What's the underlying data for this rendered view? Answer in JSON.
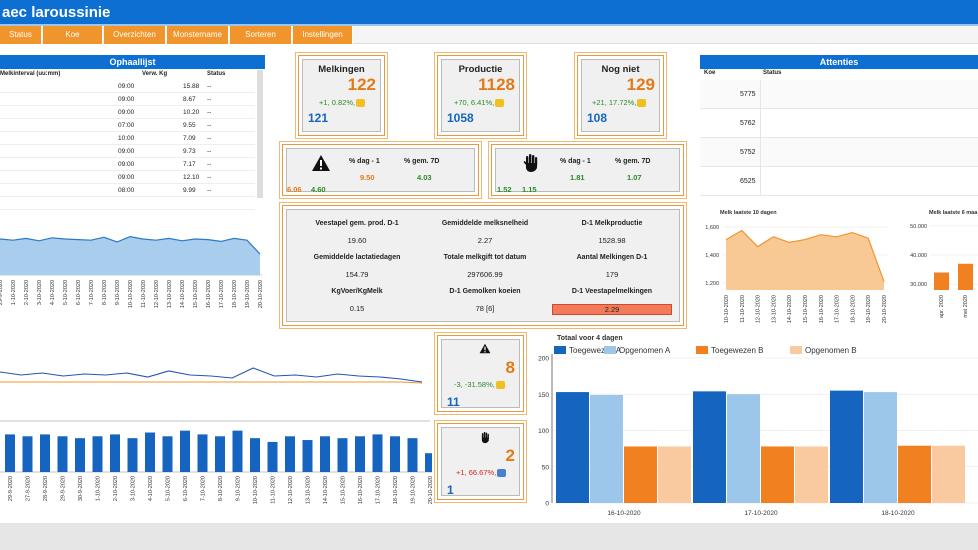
{
  "app": {
    "title": "aec laroussinie"
  },
  "menu": [
    "Status",
    "Koe",
    "Overzichten",
    "Monstername",
    "Sorteren",
    "Instellingen"
  ],
  "ophaallijst": {
    "title": "Ophaallijst",
    "columns": [
      "Melkinterval (uu:mm)",
      "Verw. Kg",
      "Status"
    ],
    "rows": [
      {
        "interval": "09:00",
        "kg": "15.88",
        "status": "--"
      },
      {
        "interval": "09:00",
        "kg": "8.67",
        "status": "--"
      },
      {
        "interval": "09:00",
        "kg": "10.20",
        "status": "--"
      },
      {
        "interval": "07:00",
        "kg": "9.55",
        "status": "--"
      },
      {
        "interval": "10:00",
        "kg": "7.09",
        "status": "--"
      },
      {
        "interval": "09:00",
        "kg": "9.73",
        "status": "--"
      },
      {
        "interval": "09:00",
        "kg": "7.17",
        "status": "--"
      },
      {
        "interval": "09:00",
        "kg": "12.10",
        "status": "--"
      },
      {
        "interval": "08:00",
        "kg": "9.99",
        "status": "--"
      },
      {
        "interval": "",
        "kg": "",
        "status": ""
      }
    ]
  },
  "kpis": {
    "melkingen": {
      "title": "Melkingen",
      "big": "122",
      "delta": "+1, 0.82%,",
      "small": "121"
    },
    "productie": {
      "title": "Productie",
      "big": "1128",
      "delta": "+70, 6.41%,",
      "small": "1058"
    },
    "nogniet": {
      "title": "Nog niet",
      "big": "129",
      "delta": "+21, 17.72%,",
      "small": "108"
    }
  },
  "alerts": {
    "warning": {
      "h1": "% dag - 1",
      "h2": "% gem. 7D",
      "v1": "9.50",
      "v2": "4.03",
      "a": "6.06",
      "b": "4.60"
    },
    "stop": {
      "h1": "% dag - 1",
      "h2": "% gem. 7D",
      "v1": "1.81",
      "v2": "1.07",
      "a": "1.52",
      "b": "1.15"
    }
  },
  "stats": [
    {
      "label": "Veestapel gem. prod. D-1",
      "value": "19.60"
    },
    {
      "label": "Gemiddelde melksnelheid",
      "value": "2.27"
    },
    {
      "label": "D-1 Melkproductie",
      "value": "1528.98"
    },
    {
      "label": "Gemiddelde lactatiedagen",
      "value": "154.79"
    },
    {
      "label": "Totale melkgift tot datum",
      "value": "297606.99"
    },
    {
      "label": "Aantal Melkingen D-1",
      "value": "179"
    },
    {
      "label": "KgVoer/KgMelk",
      "value": "0.15"
    },
    {
      "label": "D-1 Gemolken koeien",
      "value": "78 [6]"
    },
    {
      "label": "D-1 Veestapelmelkingen",
      "value": "2.29"
    }
  ],
  "warn_box": {
    "big": "8",
    "delta": "-3, -31.58%,",
    "small": "11"
  },
  "stop_box": {
    "big": "2",
    "delta": "+1, 66.67%,",
    "small": "1"
  },
  "attenties": {
    "title": "Attenties",
    "columns": [
      "Koe",
      "Status"
    ],
    "rows": [
      "5775",
      "5762",
      "5752",
      "6525"
    ]
  },
  "dates_left": [
    "29-9-2020",
    "27-9-2020",
    "28-9-2020",
    "29-9-2020",
    "30-9-2020",
    "1-10-2020",
    "2-10-2020",
    "3-10-2020",
    "4-10-2020",
    "5-10-2020",
    "6-10-2020",
    "7-10-2020",
    "8-10-2020",
    "9-10-2020",
    "10-10-2020",
    "11-10-2020",
    "12-10-2020",
    "13-10-2020",
    "14-10-2020",
    "15-10-2020",
    "16-10-2020",
    "17-10-2020",
    "18-10-2020",
    "19-10-2020",
    "20-10-2020"
  ],
  "chart_data": [
    {
      "type": "area",
      "title": "",
      "x": [
        "29-9-2020",
        "1-10-2020",
        "2-10-2020",
        "3-10-2020",
        "4-10-2020",
        "5-10-2020",
        "6-10-2020",
        "7-10-2020",
        "8-10-2020",
        "9-10-2020",
        "10-10-2020",
        "11-10-2020",
        "12-10-2020",
        "13-10-2020",
        "14-10-2020",
        "15-10-2020",
        "16-10-2020",
        "17-10-2020",
        "18-10-2020",
        "19-10-2020",
        "20-10-2020"
      ],
      "values": [
        60,
        58,
        61,
        57,
        62,
        60,
        59,
        58,
        63,
        55,
        64,
        60,
        58,
        61,
        57,
        60,
        59,
        56,
        61,
        58,
        35
      ]
    },
    {
      "type": "line",
      "title": "",
      "series": [
        {
          "name": "",
          "color": "#1f56b8",
          "values": [
            48,
            45,
            47,
            44,
            46,
            45,
            47,
            43,
            49,
            45,
            44,
            42,
            52,
            44,
            45,
            43,
            46,
            44,
            43,
            41,
            38
          ]
        },
        {
          "name": "",
          "color": "#f0952c",
          "values": [
            38,
            38,
            38,
            38,
            38,
            38,
            38,
            38,
            38,
            38,
            38,
            38,
            38,
            38,
            38,
            38,
            38,
            38,
            38,
            38,
            37
          ]
        }
      ]
    },
    {
      "type": "bar",
      "title": "",
      "categories": [
        "29-9-2020",
        "27-9-2020",
        "28-9-2020",
        "29-9-2020",
        "30-9-2020",
        "1-10-2020",
        "2-10-2020",
        "3-10-2020",
        "4-10-2020",
        "5-10-2020",
        "6-10-2020",
        "7-10-2020",
        "8-10-2020",
        "9-10-2020",
        "10-10-2020",
        "11-10-2020",
        "12-10-2020",
        "13-10-2020",
        "14-10-2020",
        "15-10-2020",
        "16-10-2020",
        "17-10-2020",
        "18-10-2020",
        "19-10-2020",
        "20-10-2020"
      ],
      "values": [
        20,
        19,
        20,
        19,
        18,
        19,
        20,
        18,
        21,
        19,
        22,
        20,
        19,
        22,
        18,
        16,
        19,
        17,
        19,
        18,
        19,
        20,
        19,
        18,
        10
      ],
      "ylim": [
        0,
        25
      ]
    },
    {
      "type": "area",
      "title": "Melk laatste 10 dagen",
      "x": [
        "10-10-2020",
        "11-10-2020",
        "12-10-2020",
        "13-10-2020",
        "14-10-2020",
        "15-10-2020",
        "16-10-2020",
        "17-10-2020",
        "18-10-2020",
        "19-10-2020",
        "20-10-2020"
      ],
      "values": [
        1510,
        1575,
        1460,
        1530,
        1490,
        1510,
        1545,
        1530,
        1560,
        1520,
        1210
      ],
      "yticks": [
        "1,600",
        "1,400",
        "1,200"
      ],
      "ylim": [
        1150,
        1650
      ]
    },
    {
      "type": "bar",
      "title": "Melk laatste 6 maa",
      "categories": [
        "apr. 2020",
        "mei 2020"
      ],
      "values": [
        34000,
        37000
      ],
      "yticks": [
        "50.000",
        "40.000",
        "30.000"
      ],
      "ylim": [
        28000,
        52000
      ]
    },
    {
      "type": "bar",
      "title": "Totaal voor 4 dagen",
      "categories": [
        "16-10-2020",
        "17-10-2020",
        "18-10-2020"
      ],
      "series": [
        {
          "name": "Toegewezen A",
          "color": "#1565c0",
          "values": [
            153,
            154,
            155
          ]
        },
        {
          "name": "Opgenomen A",
          "color": "#9cc7ea",
          "values": [
            149,
            150,
            153
          ]
        },
        {
          "name": "Toegewezen B",
          "color": "#f08020",
          "values": [
            78,
            78,
            79
          ]
        },
        {
          "name": "Opgenomen B",
          "color": "#f9c9a0",
          "values": [
            78,
            78,
            79
          ]
        }
      ],
      "yticks": [
        "200",
        "150",
        "100",
        "50",
        "0"
      ],
      "ylim": [
        0,
        200
      ]
    }
  ]
}
